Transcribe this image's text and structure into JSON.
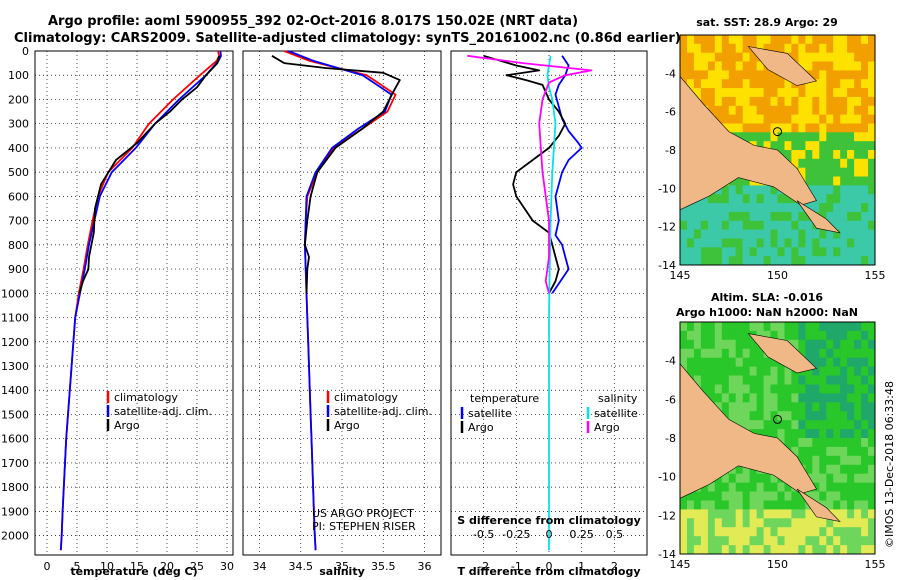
{
  "title": {
    "line1": "Argo profile: aoml 5900955_392 02-Oct-2016 8.017S 150.02E (NRT data)",
    "line2": "Climatology: CARS2009. Satellite-adjusted climatology: synTS_20161002.nc (0.86d earlier)"
  },
  "chart_data": [
    {
      "type": "line",
      "name": "temperature",
      "xlabel": "temperature (deg C)",
      "xlim": [
        -2,
        31
      ],
      "xticks": [
        0,
        5,
        10,
        15,
        20,
        25,
        30
      ],
      "ylim": [
        2080,
        0
      ],
      "yticks": [
        0,
        100,
        200,
        300,
        400,
        500,
        600,
        700,
        800,
        900,
        1000,
        1100,
        1200,
        1300,
        1400,
        1500,
        1600,
        1700,
        1800,
        1900,
        2000
      ],
      "legend": [
        "climatology",
        "satellite-adj. clim.",
        "Argo"
      ],
      "series": [
        {
          "name": "climatology",
          "color": "#ff0000",
          "x": [
            28.5,
            28.7,
            28.3,
            25.5,
            21.0,
            17.0,
            14.2,
            10.2,
            8.5,
            7.6,
            6.8,
            6.1,
            5.3,
            4.7,
            4.4,
            4.1,
            3.8,
            3.5,
            3.2,
            3.0,
            2.8,
            2.6,
            2.45,
            2.3
          ],
          "y": [
            0,
            20,
            40,
            100,
            200,
            300,
            400,
            500,
            600,
            700,
            800,
            900,
            1000,
            1100,
            1200,
            1300,
            1400,
            1500,
            1600,
            1700,
            1800,
            1900,
            2000,
            2060
          ]
        },
        {
          "name": "satellite-adj. clim.",
          "color": "#0000ff",
          "x": [
            28.9,
            29.0,
            28.6,
            26.5,
            22.0,
            18.0,
            14.8,
            10.8,
            8.8,
            7.9,
            7.0,
            6.3,
            5.5,
            4.7,
            4.4,
            4.1,
            3.8,
            3.5,
            3.2,
            3.0,
            2.8,
            2.6,
            2.45,
            2.3
          ],
          "y": [
            0,
            20,
            40,
            100,
            200,
            300,
            400,
            500,
            600,
            700,
            800,
            900,
            1000,
            1100,
            1200,
            1300,
            1400,
            1500,
            1600,
            1700,
            1800,
            1900,
            2000,
            2060
          ]
        },
        {
          "name": "Argo",
          "color": "#000000",
          "x": [
            28.7,
            28.4,
            26.5,
            25.0,
            22.5,
            20.5,
            18.0,
            15.0,
            11.5,
            9.0,
            8.0,
            7.8,
            7.0,
            6.9,
            6.0,
            5.4
          ],
          "y": [
            20,
            50,
            100,
            150,
            200,
            250,
            300,
            380,
            450,
            550,
            650,
            750,
            850,
            900,
            950,
            1000
          ]
        }
      ]
    },
    {
      "type": "line",
      "name": "salinity",
      "xlabel": "salinity",
      "xlim": [
        33.8,
        36.2
      ],
      "xticks": [
        34,
        34.5,
        35,
        35.5,
        36
      ],
      "ylim": [
        2080,
        0
      ],
      "legend": [
        "climatology",
        "satellite-adj. clim.",
        "Argo"
      ],
      "series": [
        {
          "name": "climatology",
          "color": "#ff0000",
          "x": [
            34.3,
            34.6,
            35.3,
            35.65,
            35.55,
            35.25,
            34.9,
            34.7,
            34.58,
            34.56,
            34.55,
            34.56,
            34.57,
            34.58,
            34.59,
            34.6,
            34.61,
            34.62,
            34.63,
            34.64,
            34.65,
            34.66,
            34.67,
            34.68
          ],
          "y": [
            0,
            40,
            100,
            180,
            250,
            320,
            400,
            500,
            600,
            700,
            800,
            900,
            1000,
            1100,
            1200,
            1300,
            1400,
            1500,
            1600,
            1700,
            1800,
            1900,
            2000,
            2060
          ]
        },
        {
          "name": "satellite-adj. clim.",
          "color": "#0000ff",
          "x": [
            34.35,
            34.65,
            35.25,
            35.6,
            35.52,
            35.2,
            34.88,
            34.68,
            34.57,
            34.56,
            34.55,
            34.56,
            34.57,
            34.58,
            34.59,
            34.6,
            34.61,
            34.62,
            34.63,
            34.64,
            34.65,
            34.66,
            34.67,
            34.68
          ],
          "y": [
            0,
            40,
            100,
            180,
            250,
            320,
            400,
            500,
            600,
            700,
            800,
            900,
            1000,
            1100,
            1200,
            1300,
            1400,
            1500,
            1600,
            1700,
            1800,
            1900,
            2000,
            2060
          ]
        },
        {
          "name": "Argo",
          "color": "#000000",
          "x": [
            34.15,
            34.3,
            34.8,
            35.5,
            35.7,
            35.62,
            35.5,
            35.25,
            34.92,
            34.7,
            34.62,
            34.58,
            34.55,
            34.6,
            34.58,
            34.57
          ],
          "y": [
            20,
            50,
            70,
            90,
            120,
            170,
            250,
            320,
            400,
            500,
            600,
            700,
            800,
            850,
            900,
            1000
          ]
        }
      ]
    },
    {
      "type": "line",
      "name": "T/S difference from climatology",
      "xlabel": "T difference from climatology",
      "xlabel_top": "S difference from climatology",
      "xlim": [
        -3,
        3
      ],
      "xticks": [
        -2,
        -1,
        0,
        1,
        2
      ],
      "xticks_top": [
        "-0.5",
        "-0.25",
        "0",
        "0.25",
        "0.5"
      ],
      "ylim": [
        2080,
        0
      ],
      "legend_header_left": "temperature",
      "legend_header_right": "salinity",
      "legend_left": [
        "satellite",
        "Argo"
      ],
      "legend_right": [
        "satellite",
        "Argo"
      ],
      "series": [
        {
          "name": "temperature satellite",
          "color": "#0000ff",
          "x": [
            0.4,
            0.6,
            0.5,
            0.3,
            0.2,
            0.3,
            0.4,
            0.6,
            0.9,
            1.0,
            0.6,
            0.4,
            0.2,
            0.3,
            0.2,
            0.4,
            0.5,
            0.6,
            0.3,
            0.1
          ],
          "y": [
            20,
            60,
            100,
            140,
            180,
            230,
            280,
            330,
            380,
            400,
            450,
            500,
            600,
            700,
            760,
            800,
            850,
            900,
            960,
            1000
          ]
        },
        {
          "name": "temperature Argo",
          "color": "#000000",
          "x": [
            -2.0,
            -1.5,
            -1.0,
            -0.3,
            -1.3,
            -0.7,
            -0.2,
            0.0,
            0.3,
            0.5,
            0.3,
            0.0,
            -0.5,
            -1.0,
            -1.1,
            -1.0,
            -0.5,
            0.0,
            0.1,
            0.2,
            0.3,
            0.2,
            0.0
          ],
          "y": [
            20,
            40,
            60,
            80,
            100,
            120,
            140,
            200,
            250,
            300,
            350,
            400,
            450,
            500,
            550,
            600,
            700,
            750,
            800,
            850,
            900,
            950,
            1000
          ]
        },
        {
          "name": "salinity satellite",
          "color": "#00e5e5",
          "x": [
            0.05,
            0.0,
            -0.05,
            0.0,
            0.1,
            0.2,
            0.15,
            0.1,
            0.05,
            0.02,
            0.0,
            0.0,
            0.0
          ],
          "y": [
            20,
            60,
            100,
            150,
            200,
            300,
            400,
            500,
            700,
            900,
            1100,
            1500,
            2060
          ]
        },
        {
          "name": "salinity Argo",
          "color": "#ff00ff",
          "x": [
            -2.5,
            -0.8,
            1.3,
            0.5,
            0.0,
            -0.2,
            -0.3,
            -0.2,
            0.0,
            0.0,
            -0.1,
            0.0
          ],
          "y": [
            20,
            50,
            80,
            100,
            130,
            200,
            300,
            500,
            700,
            850,
            950,
            1000
          ]
        }
      ]
    }
  ],
  "maps": [
    {
      "name": "sst",
      "title_line1": "sat. SST: 28.9 Argo: 29",
      "title_line2": "",
      "xticks": [
        "145",
        "150",
        "155"
      ],
      "yticks": [
        "-4",
        "-6",
        "-8",
        "-10",
        "-12",
        "-14"
      ],
      "land_color": "#f0b886",
      "colors": {
        "warm": "#f2a000",
        "mid": "#ffe100",
        "green": "#3ec23a",
        "teal": "#3cc9a8"
      }
    },
    {
      "name": "sla",
      "title_line1": "Altim. SLA: -0.016",
      "title_line2": "Argo h1000: NaN h2000: NaN",
      "xticks": [
        "145",
        "150",
        "155"
      ],
      "yticks": [
        "-4",
        "-6",
        "-8",
        "-10",
        "-12",
        "-14"
      ],
      "land_color": "#f0b886",
      "colors": {
        "green": "#29c729",
        "light": "#6fd65c",
        "yellow": "#e2ea55",
        "dark": "#1fa86a"
      }
    }
  ],
  "credit": {
    "line1": "US ARGO PROJECT",
    "line2": "PI: STEPHEN RISER"
  },
  "stamp": "©IMOS 13-Dec-2018 06:33:48"
}
